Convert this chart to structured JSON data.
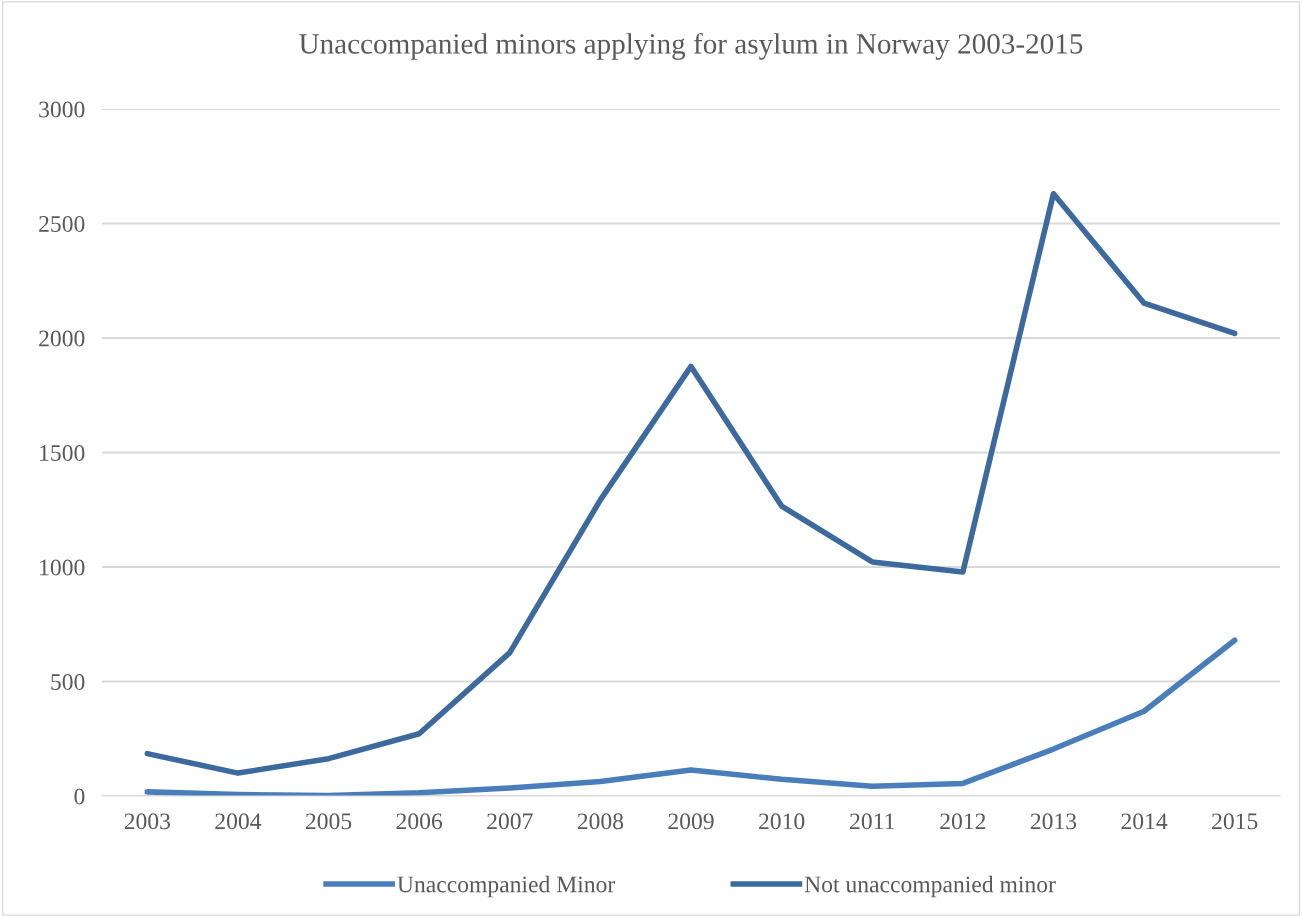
{
  "chart_data": {
    "type": "line",
    "title": "Unaccompanied minors applying for asylum in Norway 2003-2015",
    "categories": [
      "2003",
      "2004",
      "2005",
      "2006",
      "2007",
      "2008",
      "2009",
      "2010",
      "2011",
      "2012",
      "2013",
      "2014",
      "2015"
    ],
    "series": [
      {
        "name": "Unaccompanied Minor",
        "color": "#4a7ebb",
        "values": [
          18,
          6,
          2,
          14,
          35,
          63,
          114,
          73,
          43,
          55,
          205,
          370,
          680
        ]
      },
      {
        "name": "Not unaccompanied minor",
        "color": "#3d6a9e",
        "values": [
          185,
          100,
          163,
          272,
          626,
          1293,
          1876,
          1266,
          1022,
          978,
          2630,
          2152,
          2020
        ]
      }
    ],
    "ylim": [
      0,
      3000
    ],
    "yticks": [
      0,
      500,
      1000,
      1500,
      2000,
      2500,
      3000
    ],
    "grid": "y",
    "legend": "bottom",
    "marker": "none",
    "line_style": "solid"
  }
}
